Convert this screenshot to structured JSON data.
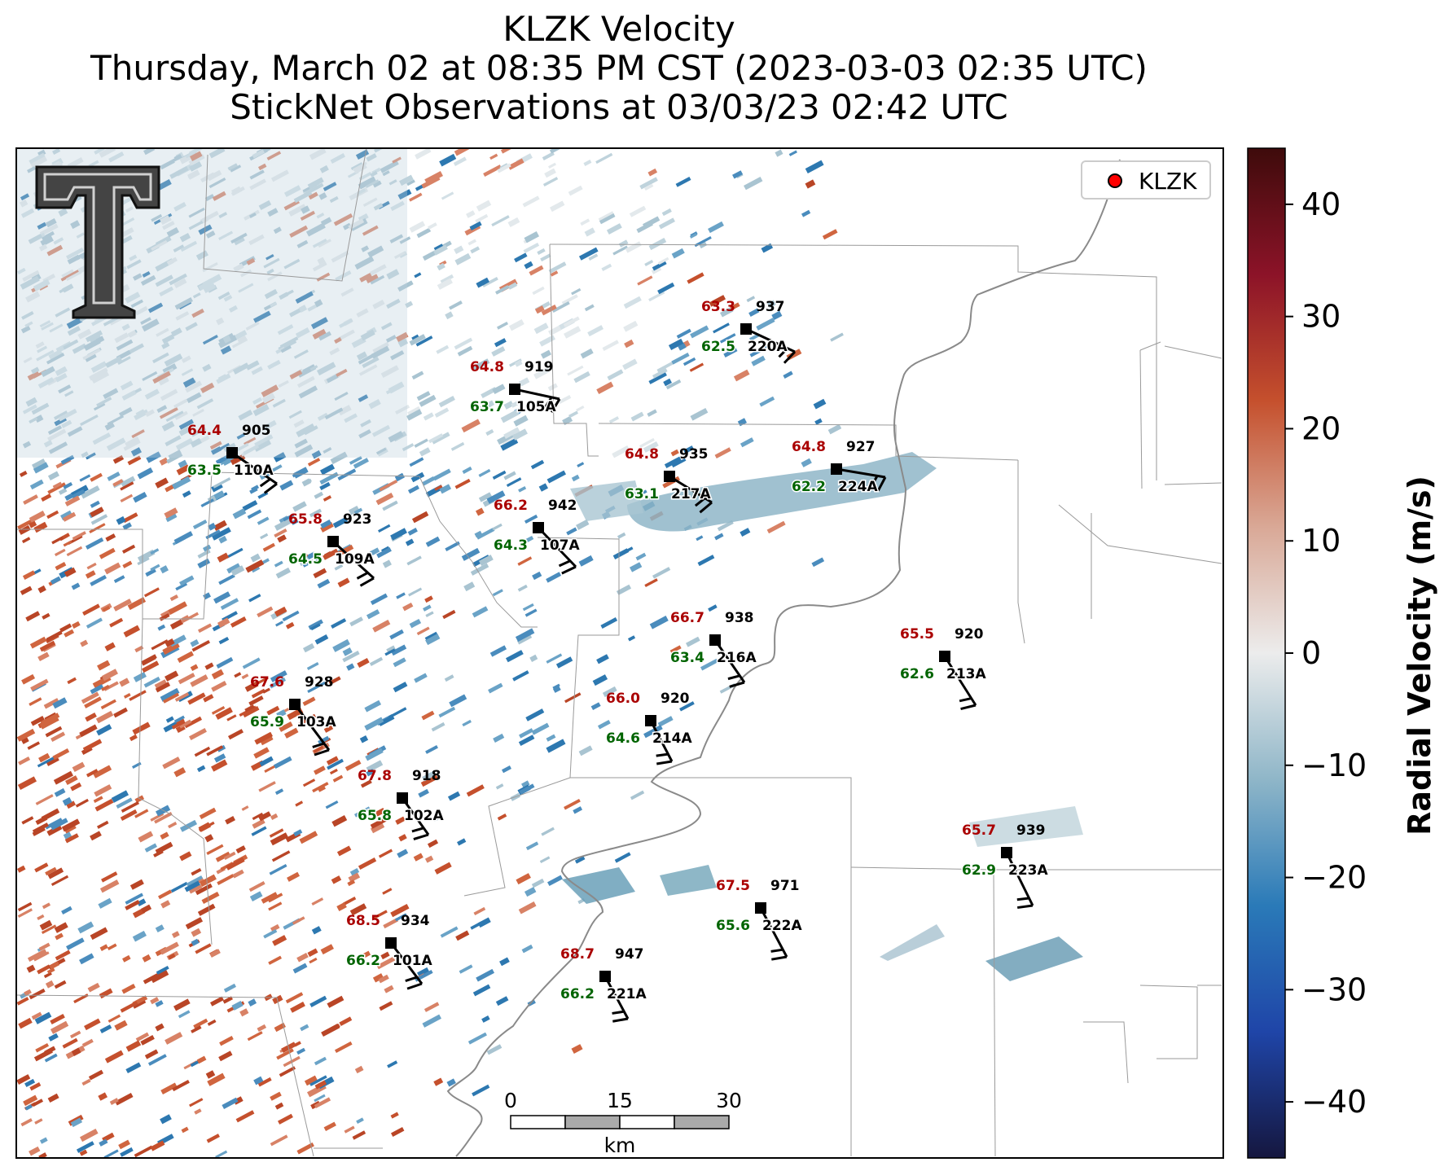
{
  "title": "KLZK Velocity",
  "subtitle1": "Thursday, March 02 at 08:35 PM CST (2023-03-03 02:35 UTC)",
  "subtitle2": "StickNet Observations at 03/03/23 02:42 UTC",
  "legend": {
    "label": "KLZK"
  },
  "colorbar": {
    "label": "Radial Velocity (m/s)",
    "range": [
      -45,
      45
    ],
    "ticks": [
      40,
      30,
      20,
      10,
      0,
      -10,
      -20,
      -30,
      -40
    ],
    "tick_labels": [
      "40",
      "30",
      "20",
      "10",
      "0",
      "−10",
      "−20",
      "−30",
      "−40"
    ],
    "colors": [
      "#15173f",
      "#1f45a8",
      "#2a7ab8",
      "#8fb6c8",
      "#ececec",
      "#d9a896",
      "#c5502d",
      "#8c1328",
      "#3e0b0b"
    ]
  },
  "scalebar": {
    "labels": [
      "0",
      "15",
      "30"
    ],
    "unit": "km"
  },
  "colors": {
    "temperature": "#aa0000",
    "dewpoint": "#006400",
    "station": "#000000"
  },
  "chart_data": {
    "type": "scatter",
    "title": "KLZK Velocity",
    "stations": [
      {
        "id": "220A",
        "temp": "63.3",
        "dew": "62.5",
        "pressure": "937"
      },
      {
        "id": "105A",
        "temp": "64.8",
        "dew": "63.7",
        "pressure": "919"
      },
      {
        "id": "110A",
        "temp": "64.4",
        "dew": "63.5",
        "pressure": "905"
      },
      {
        "id": "217A",
        "temp": "64.8",
        "dew": "63.1",
        "pressure": "935"
      },
      {
        "id": "224A",
        "temp": "64.8",
        "dew": "62.2",
        "pressure": "927"
      },
      {
        "id": "107A",
        "temp": "66.2",
        "dew": "64.3",
        "pressure": "942"
      },
      {
        "id": "109A",
        "temp": "65.8",
        "dew": "64.5",
        "pressure": "923"
      },
      {
        "id": "216A",
        "temp": "66.7",
        "dew": "63.4",
        "pressure": "938"
      },
      {
        "id": "213A",
        "temp": "65.5",
        "dew": "62.6",
        "pressure": "920"
      },
      {
        "id": "103A",
        "temp": "67.6",
        "dew": "65.9",
        "pressure": "928"
      },
      {
        "id": "214A",
        "temp": "66.0",
        "dew": "64.6",
        "pressure": "920"
      },
      {
        "id": "102A",
        "temp": "67.8",
        "dew": "65.8",
        "pressure": "918"
      },
      {
        "id": "223A",
        "temp": "65.7",
        "dew": "62.9",
        "pressure": "939"
      },
      {
        "id": "222A",
        "temp": "67.5",
        "dew": "65.6",
        "pressure": "971"
      },
      {
        "id": "101A",
        "temp": "68.5",
        "dew": "66.2",
        "pressure": "934"
      },
      {
        "id": "221A",
        "temp": "68.7",
        "dew": "66.2",
        "pressure": "947"
      }
    ]
  }
}
